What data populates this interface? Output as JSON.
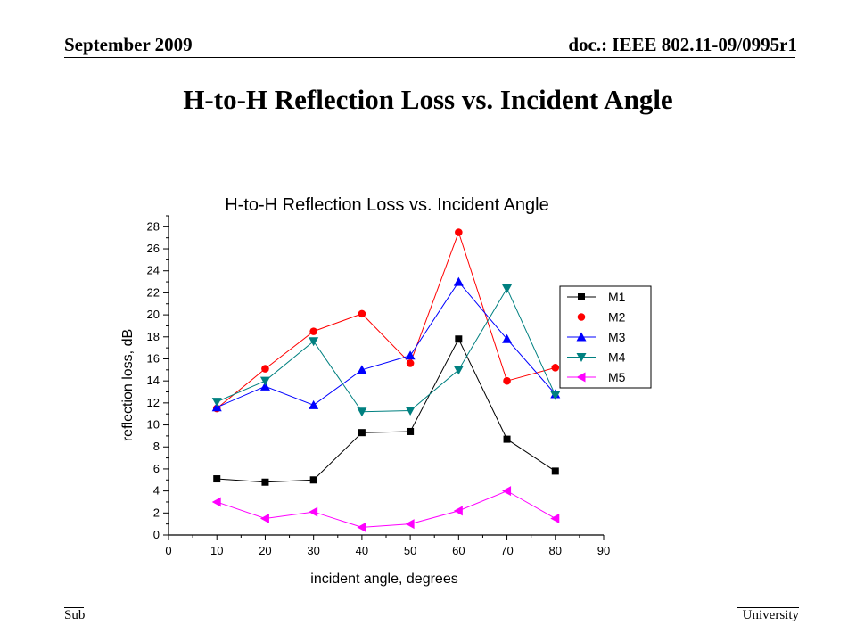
{
  "header": {
    "date": "September 2009",
    "doc": "doc.: IEEE 802.11-09/0995r1"
  },
  "slide_title": "H-to-H Reflection Loss vs. Incident Angle",
  "footer": {
    "left": "Sub",
    "right": "University"
  },
  "colors": {
    "M1": "#000000",
    "M2": "#ff0000",
    "M3": "#0000ff",
    "M4": "#008080",
    "M5": "#ff00ff"
  },
  "chart_data": {
    "type": "line",
    "title": "H-to-H Reflection Loss vs. Incident Angle",
    "xlabel": "incident angle, degrees",
    "ylabel": "reflection loss, dB",
    "xlim": [
      0,
      90
    ],
    "ylim": [
      0,
      29
    ],
    "x_ticks": [
      0,
      10,
      20,
      30,
      40,
      50,
      60,
      70,
      80,
      90
    ],
    "y_ticks": [
      0,
      2,
      4,
      6,
      8,
      10,
      12,
      14,
      16,
      18,
      20,
      22,
      24,
      26,
      28
    ],
    "grid": false,
    "legend_position": "right",
    "x": [
      10,
      20,
      30,
      40,
      50,
      60,
      70,
      80
    ],
    "series": [
      {
        "name": "M1",
        "marker": "square",
        "color": "#000000",
        "values": [
          5.1,
          4.8,
          5.0,
          9.3,
          9.4,
          17.8,
          8.7,
          5.8
        ]
      },
      {
        "name": "M2",
        "marker": "circle",
        "color": "#ff0000",
        "values": [
          11.5,
          15.1,
          18.5,
          20.1,
          15.6,
          27.5,
          14.0,
          15.2
        ]
      },
      {
        "name": "M3",
        "marker": "triangle-up",
        "color": "#0000ff",
        "values": [
          11.6,
          13.5,
          11.8,
          15.0,
          16.3,
          23.0,
          17.8,
          12.8
        ]
      },
      {
        "name": "M4",
        "marker": "triangle-down",
        "color": "#008080",
        "values": [
          12.1,
          14.0,
          17.6,
          11.2,
          11.3,
          15.0,
          22.4,
          12.7
        ]
      },
      {
        "name": "M5",
        "marker": "triangle-left",
        "color": "#ff00ff",
        "values": [
          3.0,
          1.5,
          2.1,
          0.7,
          1.0,
          2.2,
          4.0,
          1.5
        ]
      }
    ]
  }
}
